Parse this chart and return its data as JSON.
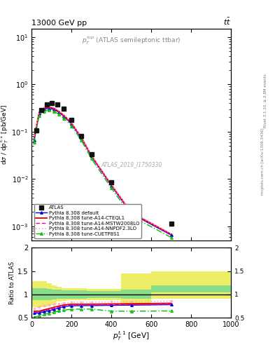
{
  "title_left": "13000 GeV pp",
  "title_right": "tt",
  "inner_title": "$p_T^{top}$ (ATLAS semileptonic ttbar)",
  "watermark": "ATLAS_2019_I1750330",
  "xlabel": "$p_T^{t,1}$ [GeV]",
  "ylabel": "d$\\sigma$ / d$p_T^{t,1}$ [pb/GeV]",
  "ratio_ylabel": "Ratio to ATLAS",
  "xmin": 0,
  "xmax": 1000,
  "ymin": 0.0005,
  "ymax": 15,
  "ratio_ymin": 0.5,
  "ratio_ymax": 2.0,
  "atlas_x": [
    25,
    50,
    75,
    100,
    130,
    160,
    200,
    250,
    300,
    400,
    500,
    700
  ],
  "atlas_y": [
    0.108,
    0.29,
    0.38,
    0.4,
    0.38,
    0.31,
    0.175,
    0.08,
    0.033,
    0.0085,
    0.0023,
    0.00115
  ],
  "pythia_default_x": [
    12.5,
    37.5,
    62.5,
    87.5,
    112.5,
    137.5,
    162.5,
    200,
    250,
    300,
    400,
    500,
    700
  ],
  "pythia_default_y": [
    0.065,
    0.24,
    0.3,
    0.31,
    0.295,
    0.255,
    0.21,
    0.145,
    0.072,
    0.03,
    0.0072,
    0.00185,
    0.00065
  ],
  "pythia_cteq_x": [
    12.5,
    37.5,
    62.5,
    87.5,
    112.5,
    137.5,
    162.5,
    200,
    250,
    300,
    400,
    500,
    700
  ],
  "pythia_cteq_y": [
    0.075,
    0.255,
    0.315,
    0.33,
    0.31,
    0.265,
    0.22,
    0.152,
    0.075,
    0.031,
    0.0075,
    0.00195,
    0.00068
  ],
  "pythia_mstw_x": [
    12.5,
    37.5,
    62.5,
    87.5,
    112.5,
    137.5,
    162.5,
    200,
    250,
    300,
    400,
    500,
    700
  ],
  "pythia_mstw_y": [
    0.072,
    0.245,
    0.305,
    0.32,
    0.3,
    0.258,
    0.213,
    0.148,
    0.073,
    0.0305,
    0.0073,
    0.00188,
    0.00066
  ],
  "pythia_nnpdf_x": [
    12.5,
    37.5,
    62.5,
    87.5,
    112.5,
    137.5,
    162.5,
    200,
    250,
    300,
    400,
    500,
    700
  ],
  "pythia_nnpdf_y": [
    0.082,
    0.268,
    0.33,
    0.345,
    0.325,
    0.278,
    0.228,
    0.157,
    0.078,
    0.0325,
    0.0078,
    0.002,
    0.0007
  ],
  "pythia_cuet_x": [
    12.5,
    37.5,
    62.5,
    87.5,
    112.5,
    137.5,
    162.5,
    200,
    250,
    300,
    400,
    500,
    700
  ],
  "pythia_cuet_y": [
    0.06,
    0.215,
    0.27,
    0.285,
    0.268,
    0.232,
    0.192,
    0.132,
    0.065,
    0.0268,
    0.0064,
    0.00165,
    0.00058
  ],
  "band_x_edges": [
    0,
    50,
    75,
    100,
    125,
    150,
    175,
    225,
    275,
    350,
    450,
    600,
    800,
    1000
  ],
  "ratio_green_lo": [
    0.87,
    0.87,
    0.88,
    0.89,
    0.9,
    0.91,
    0.91,
    0.91,
    0.92,
    0.92,
    0.9,
    1.05,
    1.05
  ],
  "ratio_green_hi": [
    1.13,
    1.13,
    1.12,
    1.11,
    1.1,
    1.09,
    1.09,
    1.09,
    1.08,
    1.08,
    1.1,
    1.2,
    1.2
  ],
  "ratio_yellow_lo": [
    0.72,
    0.72,
    0.76,
    0.8,
    0.84,
    0.86,
    0.87,
    0.87,
    0.88,
    0.88,
    0.75,
    0.9,
    0.9
  ],
  "ratio_yellow_hi": [
    1.28,
    1.28,
    1.24,
    1.2,
    1.16,
    1.14,
    1.13,
    1.13,
    1.12,
    1.12,
    1.45,
    1.5,
    1.5
  ],
  "ratio_default_x": [
    12.5,
    37.5,
    62.5,
    87.5,
    112.5,
    137.5,
    162.5,
    200,
    250,
    300,
    400,
    500,
    700
  ],
  "ratio_default_y": [
    0.6,
    0.6,
    0.63,
    0.65,
    0.68,
    0.71,
    0.74,
    0.755,
    0.76,
    0.76,
    0.765,
    0.77,
    0.78
  ],
  "ratio_cteq_x": [
    12.5,
    37.5,
    62.5,
    87.5,
    112.5,
    137.5,
    162.5,
    200,
    250,
    300,
    400,
    500,
    700
  ],
  "ratio_cteq_y": [
    0.64,
    0.64,
    0.67,
    0.695,
    0.725,
    0.75,
    0.775,
    0.79,
    0.79,
    0.79,
    0.795,
    0.8,
    0.81
  ],
  "ratio_mstw_x": [
    12.5,
    37.5,
    62.5,
    87.5,
    112.5,
    137.5,
    162.5,
    200,
    250,
    300,
    400,
    500,
    700
  ],
  "ratio_mstw_y": [
    0.62,
    0.62,
    0.65,
    0.675,
    0.7,
    0.73,
    0.755,
    0.77,
    0.77,
    0.77,
    0.775,
    0.78,
    0.79
  ],
  "ratio_nnpdf_x": [
    12.5,
    37.5,
    62.5,
    87.5,
    112.5,
    137.5,
    162.5,
    200,
    250,
    300,
    400,
    500,
    700
  ],
  "ratio_nnpdf_y": [
    0.7,
    0.73,
    0.76,
    0.775,
    0.79,
    0.8,
    0.815,
    0.83,
    0.835,
    0.835,
    0.84,
    0.845,
    0.855
  ],
  "ratio_cuet_x": [
    12.5,
    37.5,
    62.5,
    87.5,
    112.5,
    137.5,
    162.5,
    200,
    250,
    300,
    400,
    500,
    700
  ],
  "ratio_cuet_y": [
    0.51,
    0.54,
    0.57,
    0.595,
    0.62,
    0.645,
    0.665,
    0.68,
    0.685,
    0.685,
    0.64,
    0.64,
    0.645
  ],
  "color_default": "#0000ee",
  "color_cteq": "#dd0000",
  "color_mstw": "#ee0099",
  "color_nnpdf": "#ffaacc",
  "color_cuet": "#00bb00",
  "color_atlas": "#111111",
  "color_green_band": "#88dd88",
  "color_yellow_band": "#eeee66"
}
